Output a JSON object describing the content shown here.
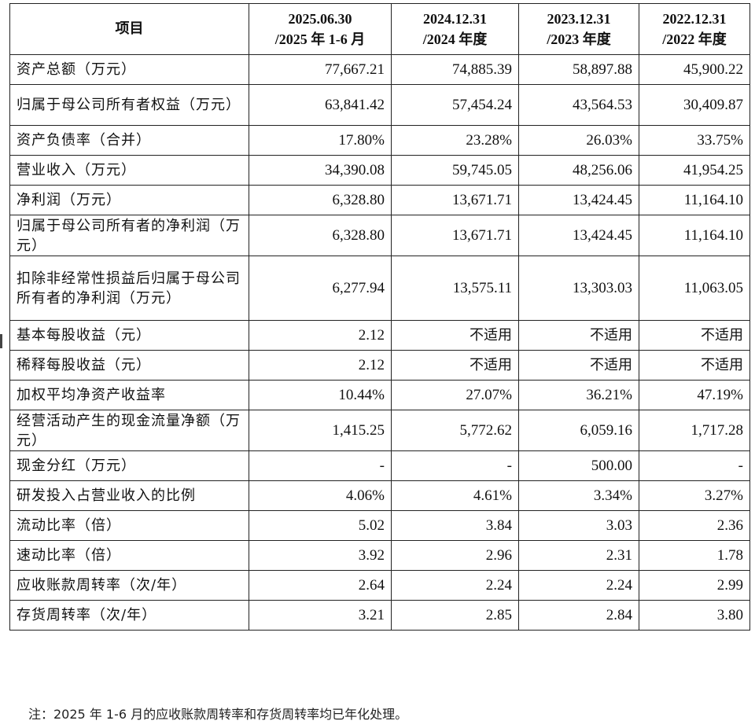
{
  "table": {
    "headers": [
      {
        "line1": "项目",
        "line2": ""
      },
      {
        "line1": "2025.06.30",
        "line2": "/2025 年 1-6 月"
      },
      {
        "line1": "2024.12.31",
        "line2": "/2024 年度"
      },
      {
        "line1": "2023.12.31",
        "line2": "/2023 年度"
      },
      {
        "line1": "2022.12.31",
        "line2": "/2022 年度"
      }
    ],
    "rows": [
      {
        "item": "资产总额（万元）",
        "values": [
          "77,667.21",
          "74,885.39",
          "58,897.88",
          "45,900.22"
        ]
      },
      {
        "item": "归属于母公司所有者权益（万元）",
        "values": [
          "63,841.42",
          "57,454.24",
          "43,564.53",
          "30,409.87"
        ]
      },
      {
        "item": "资产负债率（合并）",
        "values": [
          "17.80%",
          "23.28%",
          "26.03%",
          "33.75%"
        ]
      },
      {
        "item": "营业收入（万元）",
        "values": [
          "34,390.08",
          "59,745.05",
          "48,256.06",
          "41,954.25"
        ]
      },
      {
        "item": "净利润（万元）",
        "values": [
          "6,328.80",
          "13,671.71",
          "13,424.45",
          "11,164.10"
        ]
      },
      {
        "item": "归属于母公司所有者的净利润（万元）",
        "values": [
          "6,328.80",
          "13,671.71",
          "13,424.45",
          "11,164.10"
        ]
      },
      {
        "item": "扣除非经常性损益后归属于母公司所有者的净利润（万元）",
        "values": [
          "6,277.94",
          "13,575.11",
          "13,303.03",
          "11,063.05"
        ]
      },
      {
        "item": "基本每股收益（元）",
        "values": [
          "2.12",
          "不适用",
          "不适用",
          "不适用"
        ]
      },
      {
        "item": "稀释每股收益（元）",
        "values": [
          "2.12",
          "不适用",
          "不适用",
          "不适用"
        ]
      },
      {
        "item": "加权平均净资产收益率",
        "values": [
          "10.44%",
          "27.07%",
          "36.21%",
          "47.19%"
        ]
      },
      {
        "item": "经营活动产生的现金流量净额（万元）",
        "values": [
          "1,415.25",
          "5,772.62",
          "6,059.16",
          "1,717.28"
        ]
      },
      {
        "item": "现金分红（万元）",
        "values": [
          "-",
          "-",
          "500.00",
          "-"
        ]
      },
      {
        "item": "研发投入占营业收入的比例",
        "values": [
          "4.06%",
          "4.61%",
          "3.34%",
          "3.27%"
        ]
      },
      {
        "item": "流动比率（倍）",
        "values": [
          "5.02",
          "3.84",
          "3.03",
          "2.36"
        ]
      },
      {
        "item": "速动比率（倍）",
        "values": [
          "3.92",
          "2.96",
          "2.31",
          "1.78"
        ]
      },
      {
        "item": "应收账款周转率（次/年）",
        "values": [
          "2.64",
          "2.24",
          "2.24",
          "2.99"
        ]
      },
      {
        "item": "存货周转率（次/年）",
        "values": [
          "3.21",
          "2.85",
          "2.84",
          "3.80"
        ]
      }
    ]
  },
  "note": "注：2025 年 1-6 月的应收账款周转率和存货周转率均已年化处理。"
}
